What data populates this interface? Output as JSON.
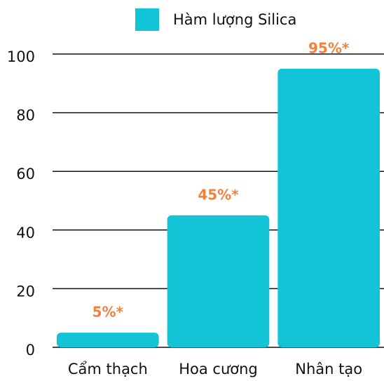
{
  "chart_data": {
    "type": "bar",
    "categories": [
      "Cẩm thạch",
      "Hoa cương",
      "Nhân tạo"
    ],
    "series": [
      {
        "name": "Hàm lượng Silica",
        "color": "#13c4d7",
        "values": [
          5,
          45,
          95
        ],
        "value_labels": [
          "5%*",
          "45%*",
          "95%*"
        ]
      }
    ],
    "ylim": [
      0,
      100
    ],
    "yticks": [
      0,
      20,
      40,
      60,
      80,
      100
    ],
    "grid": true,
    "legend": "top"
  }
}
